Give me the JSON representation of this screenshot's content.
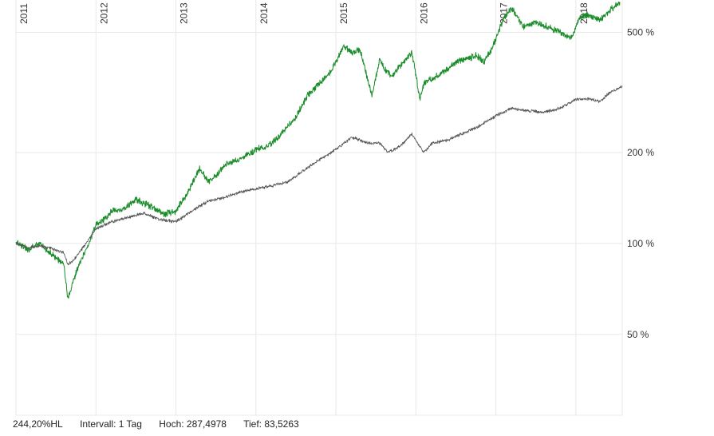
{
  "footer": {
    "performance": "244,20%HL",
    "interval": "Intervall: 1 Tag",
    "high": "Hoch: 287,4978",
    "low": "Tief: 83,5263"
  },
  "chart_data": {
    "type": "line",
    "y_scale": "log",
    "ylim": [
      27,
      640
    ],
    "xlim": [
      2011.0,
      2018.58
    ],
    "x_ticks": [
      "2011",
      "2012",
      "2013",
      "2014",
      "2015",
      "2016",
      "2017",
      "2018"
    ],
    "y_ticks": [
      {
        "value": 50,
        "label": "50 %"
      },
      {
        "value": 100,
        "label": "100 %"
      },
      {
        "value": 200,
        "label": "200 %"
      },
      {
        "value": 500,
        "label": "500 %"
      }
    ],
    "grid": true,
    "colors": {
      "fund": "#1a8c2a",
      "benchmark": "#555555",
      "grid": "#e8e8e8"
    },
    "series": [
      {
        "key": "fund",
        "x": [
          2011.0,
          2011.15,
          2011.3,
          2011.45,
          2011.6,
          2011.65,
          2011.75,
          2011.85,
          2012.0,
          2012.1,
          2012.2,
          2012.35,
          2012.5,
          2012.7,
          2012.85,
          2013.0,
          2013.15,
          2013.3,
          2013.4,
          2013.5,
          2013.65,
          2013.8,
          2014.0,
          2014.15,
          2014.3,
          2014.5,
          2014.65,
          2014.8,
          2014.9,
          2015.0,
          2015.1,
          2015.2,
          2015.3,
          2015.45,
          2015.55,
          2015.6,
          2015.7,
          2015.85,
          2015.95,
          2016.05,
          2016.1,
          2016.2,
          2016.35,
          2016.5,
          2016.65,
          2016.75,
          2016.85,
          2016.95,
          2017.1,
          2017.2,
          2017.35,
          2017.5,
          2017.65,
          2017.8,
          2017.95,
          2018.05,
          2018.15,
          2018.3,
          2018.45,
          2018.55
        ],
        "values": [
          102,
          95,
          100,
          92,
          85,
          65,
          80,
          92,
          115,
          120,
          128,
          130,
          140,
          132,
          125,
          128,
          148,
          178,
          160,
          168,
          185,
          190,
          205,
          210,
          228,
          262,
          310,
          340,
          360,
          400,
          450,
          430,
          440,
          310,
          410,
          380,
          360,
          400,
          430,
          300,
          340,
          350,
          370,
          400,
          410,
          420,
          400,
          440,
          560,
          600,
          520,
          540,
          520,
          500,
          480,
          560,
          570,
          550,
          600,
          630
        ]
      },
      {
        "key": "benchmark",
        "x": [
          2011.0,
          2011.15,
          2011.3,
          2011.45,
          2011.6,
          2011.65,
          2011.75,
          2011.85,
          2012.0,
          2012.2,
          2012.4,
          2012.6,
          2012.8,
          2013.0,
          2013.2,
          2013.4,
          2013.6,
          2013.8,
          2014.0,
          2014.2,
          2014.4,
          2014.6,
          2014.8,
          2015.0,
          2015.2,
          2015.4,
          2015.55,
          2015.65,
          2015.8,
          2015.95,
          2016.1,
          2016.2,
          2016.4,
          2016.6,
          2016.8,
          2017.0,
          2017.2,
          2017.4,
          2017.6,
          2017.8,
          2018.0,
          2018.15,
          2018.3,
          2018.45,
          2018.58
        ],
        "values": [
          100,
          97,
          98,
          96,
          93,
          85,
          90,
          98,
          112,
          118,
          122,
          126,
          120,
          118,
          128,
          138,
          142,
          148,
          152,
          155,
          160,
          175,
          190,
          205,
          225,
          215,
          215,
          200,
          210,
          230,
          200,
          215,
          220,
          232,
          245,
          265,
          280,
          275,
          272,
          280,
          300,
          302,
          295,
          320,
          330
        ]
      }
    ]
  }
}
